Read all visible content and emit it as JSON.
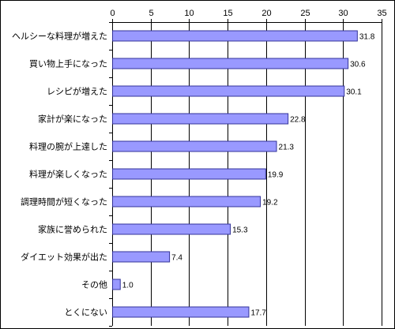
{
  "chart_data": {
    "type": "bar",
    "orientation": "horizontal",
    "title": "",
    "xlabel": "",
    "ylabel": "",
    "xlim": [
      0,
      35
    ],
    "ticks": [
      0,
      5,
      10,
      15,
      20,
      25,
      30,
      35
    ],
    "grid": true,
    "legend": "none",
    "bar_color": "#9999ff",
    "bar_stroke": "#333399",
    "categories": [
      "ヘルシーな料理が増えた",
      "買い物上手になった",
      "レシピが増えた",
      "家計が楽になった",
      "料理の腕が上達した",
      "料理が楽しくなった",
      "調理時間が短くなった",
      "家族に誉められた",
      "ダイエット効果が出た",
      "その他",
      "とくにない"
    ],
    "values": [
      31.8,
      30.6,
      30.1,
      22.8,
      21.3,
      19.9,
      19.2,
      15.3,
      7.4,
      1.0,
      17.7
    ],
    "value_labels": [
      "31.8",
      "30.6",
      "30.1",
      "22.8",
      "21.3",
      "19.9",
      "19.2",
      "15.3",
      "7.4",
      "1.0",
      "17.7"
    ]
  }
}
